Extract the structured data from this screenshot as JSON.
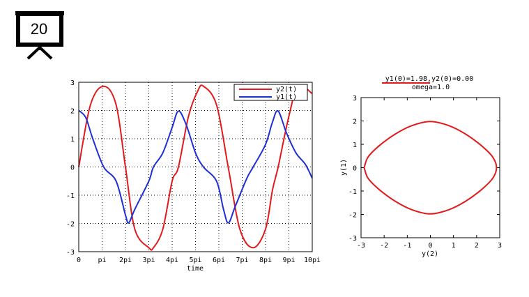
{
  "slide": {
    "number": "20",
    "icon": "presentation-board-icon"
  },
  "chart_data": [
    {
      "type": "line",
      "xlabel": "time",
      "ylabel": "",
      "xlim_pi": [
        0,
        10
      ],
      "ylim": [
        -3,
        3
      ],
      "x_ticks": [
        "0",
        "pi",
        "2pi",
        "3pi",
        "4pi",
        "5pi",
        "6pi",
        "7pi",
        "8pi",
        "9pi",
        "10pi"
      ],
      "y_ticks": [
        "3",
        "2",
        "1",
        "0",
        "-1",
        "-2",
        "-3"
      ],
      "grid": true,
      "legend_position": "top-right",
      "series": [
        {
          "name": "y2(t)",
          "color": "#e31a1c",
          "x_pi": [
            0,
            0.5,
            1.07,
            1.6,
            2.0,
            2.4,
            3.0,
            3.2,
            3.6,
            4.0,
            4.27,
            4.7,
            5.1,
            5.34,
            5.9,
            6.4,
            6.9,
            7.47,
            8.0,
            8.3,
            8.54,
            9.0,
            9.4,
            10.0
          ],
          "y": [
            0,
            2.2,
            2.86,
            2.2,
            0,
            -2.2,
            -2.86,
            -2.86,
            -2.2,
            -0.5,
            0,
            1.8,
            2.7,
            2.86,
            2.2,
            0,
            -2.2,
            -2.86,
            -2.2,
            -0.8,
            0,
            1.8,
            2.86,
            2.6
          ]
        },
        {
          "name": "y1(t)",
          "color": "#1f2fd8",
          "x_pi": [
            0,
            0.3,
            0.6,
            1.07,
            1.6,
            2.0,
            2.14,
            2.4,
            3.0,
            3.2,
            3.6,
            4.0,
            4.27,
            4.6,
            5.0,
            5.34,
            5.9,
            6.2,
            6.41,
            6.7,
            7.2,
            7.47,
            8.0,
            8.3,
            8.54,
            8.9,
            9.3,
            9.7,
            10.0
          ],
          "y": [
            2.0,
            1.75,
            1.0,
            0,
            -0.5,
            -1.7,
            -1.98,
            -1.5,
            -0.5,
            0,
            0.5,
            1.4,
            1.98,
            1.5,
            0.5,
            0,
            -0.5,
            -1.5,
            -1.98,
            -1.4,
            -0.4,
            0,
            0.8,
            1.6,
            1.98,
            1.2,
            0.5,
            0.1,
            -0.4
          ]
        }
      ]
    },
    {
      "type": "line",
      "title": "y1(0)=1.98,y2(0)=0.00",
      "subtitle": "omega=1.0",
      "xlabel": "y(2)",
      "ylabel": "y(1)",
      "xlim": [
        -3,
        3
      ],
      "ylim": [
        -3,
        3
      ],
      "x_ticks": [
        "-3",
        "-2",
        "-1",
        "0",
        "1",
        "2",
        "3"
      ],
      "y_ticks": [
        "3",
        "2",
        "1",
        "0",
        "-1",
        "-2",
        "-3"
      ],
      "grid": false,
      "series": [
        {
          "color": "#e31a1c",
          "x": [
            -2.86,
            -2.7,
            -2.2,
            -1.5,
            -0.8,
            0,
            0.8,
            1.5,
            2.2,
            2.7,
            2.86,
            2.7,
            2.2,
            1.5,
            0.8,
            0,
            -0.8,
            -1.5,
            -2.2,
            -2.7,
            -2.86
          ],
          "y": [
            0,
            0.45,
            0.95,
            1.45,
            1.8,
            1.98,
            1.8,
            1.45,
            0.95,
            0.45,
            0,
            -0.45,
            -0.95,
            -1.45,
            -1.8,
            -1.98,
            -1.8,
            -1.45,
            -0.95,
            -0.45,
            0
          ]
        }
      ]
    }
  ]
}
